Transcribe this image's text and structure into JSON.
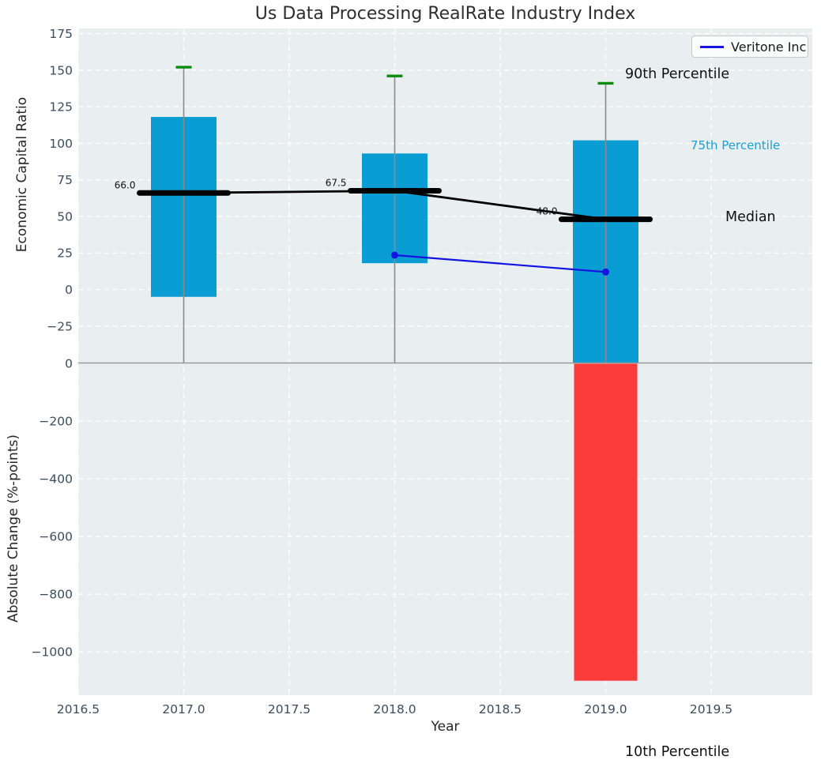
{
  "title": "Us Data Processing RealRate Industry Index",
  "legend": {
    "label": "Veritone Inc"
  },
  "annotations": {
    "p90": "90th Percentile",
    "p75": "75th Percentile",
    "median": "Median",
    "p10": "10th Percentile"
  },
  "axes": {
    "x_label": "Year",
    "x_ticks": [
      {
        "v": 2016.5,
        "label": "2016.5"
      },
      {
        "v": 2017.0,
        "label": "2017.0"
      },
      {
        "v": 2017.5,
        "label": "2017.5"
      },
      {
        "v": 2018.0,
        "label": "2018.0"
      },
      {
        "v": 2018.5,
        "label": "2018.5"
      },
      {
        "v": 2019.0,
        "label": "2019.0"
      },
      {
        "v": 2019.5,
        "label": "2019.5"
      }
    ],
    "top_panel": {
      "y_label": "Economic Capital Ratio",
      "y_ticks": [
        {
          "v": 175,
          "label": "175"
        },
        {
          "v": 150,
          "label": "150"
        },
        {
          "v": 125,
          "label": "125"
        },
        {
          "v": 100,
          "label": "100"
        },
        {
          "v": 75,
          "label": "75"
        },
        {
          "v": 50,
          "label": "50"
        },
        {
          "v": 25,
          "label": "25"
        },
        {
          "v": 0,
          "label": "0"
        },
        {
          "v": -25,
          "label": "−25"
        }
      ]
    },
    "bottom_panel": {
      "y_label": "Absolute Change (%-points)",
      "y_ticks": [
        {
          "v": 0,
          "label": "0"
        },
        {
          "v": -200,
          "label": "−200"
        },
        {
          "v": -400,
          "label": "−400"
        },
        {
          "v": -600,
          "label": "−600"
        },
        {
          "v": -800,
          "label": "−800"
        },
        {
          "v": -1000,
          "label": "−1000"
        }
      ]
    }
  },
  "chart_data": {
    "type": "combo",
    "title": "Us Data Processing RealRate Industry Index",
    "xlabel": "Year",
    "xlim": [
      2016.5,
      2020.0
    ],
    "x_years": [
      2017,
      2018,
      2019
    ],
    "top_panel": {
      "ylabel": "Economic Capital Ratio",
      "ylim": [
        -50,
        178
      ],
      "percentile_90": [
        152,
        146,
        141
      ],
      "percentile_75": [
        118,
        93,
        102
      ],
      "median": [
        66.0,
        67.5,
        48.0
      ],
      "median_labels": [
        "66.0",
        "67.5",
        "48.0"
      ],
      "percentile_25": [
        -5,
        18,
        null
      ],
      "percentile_25_note": "2019 box lower edge extends below visible range",
      "veritone_inc": {
        "x": [
          2018,
          2019
        ],
        "y": [
          23.5,
          12
        ]
      }
    },
    "bottom_panel": {
      "ylabel": "Absolute Change (%-points)",
      "ylim": [
        -1150,
        0
      ],
      "change_bars": [
        {
          "x": 2019,
          "value": -1100,
          "meaning": "10th Percentile change"
        }
      ]
    },
    "grid": true,
    "legend_position": "upper right"
  },
  "colors": {
    "box": "#0a9dd4",
    "negative_bar": "#fc3b3b",
    "p90_tick": "#0b8a0b",
    "median": "#000000",
    "veritone": "#1414e0",
    "plot_bg": "#e9eef0",
    "grid": "#ffffff",
    "tick_text": "#3b4d5f",
    "annotation": "#111111",
    "p75_text": "#16a0d6",
    "whisker": "#8a8a8a",
    "separator": "#999999"
  }
}
